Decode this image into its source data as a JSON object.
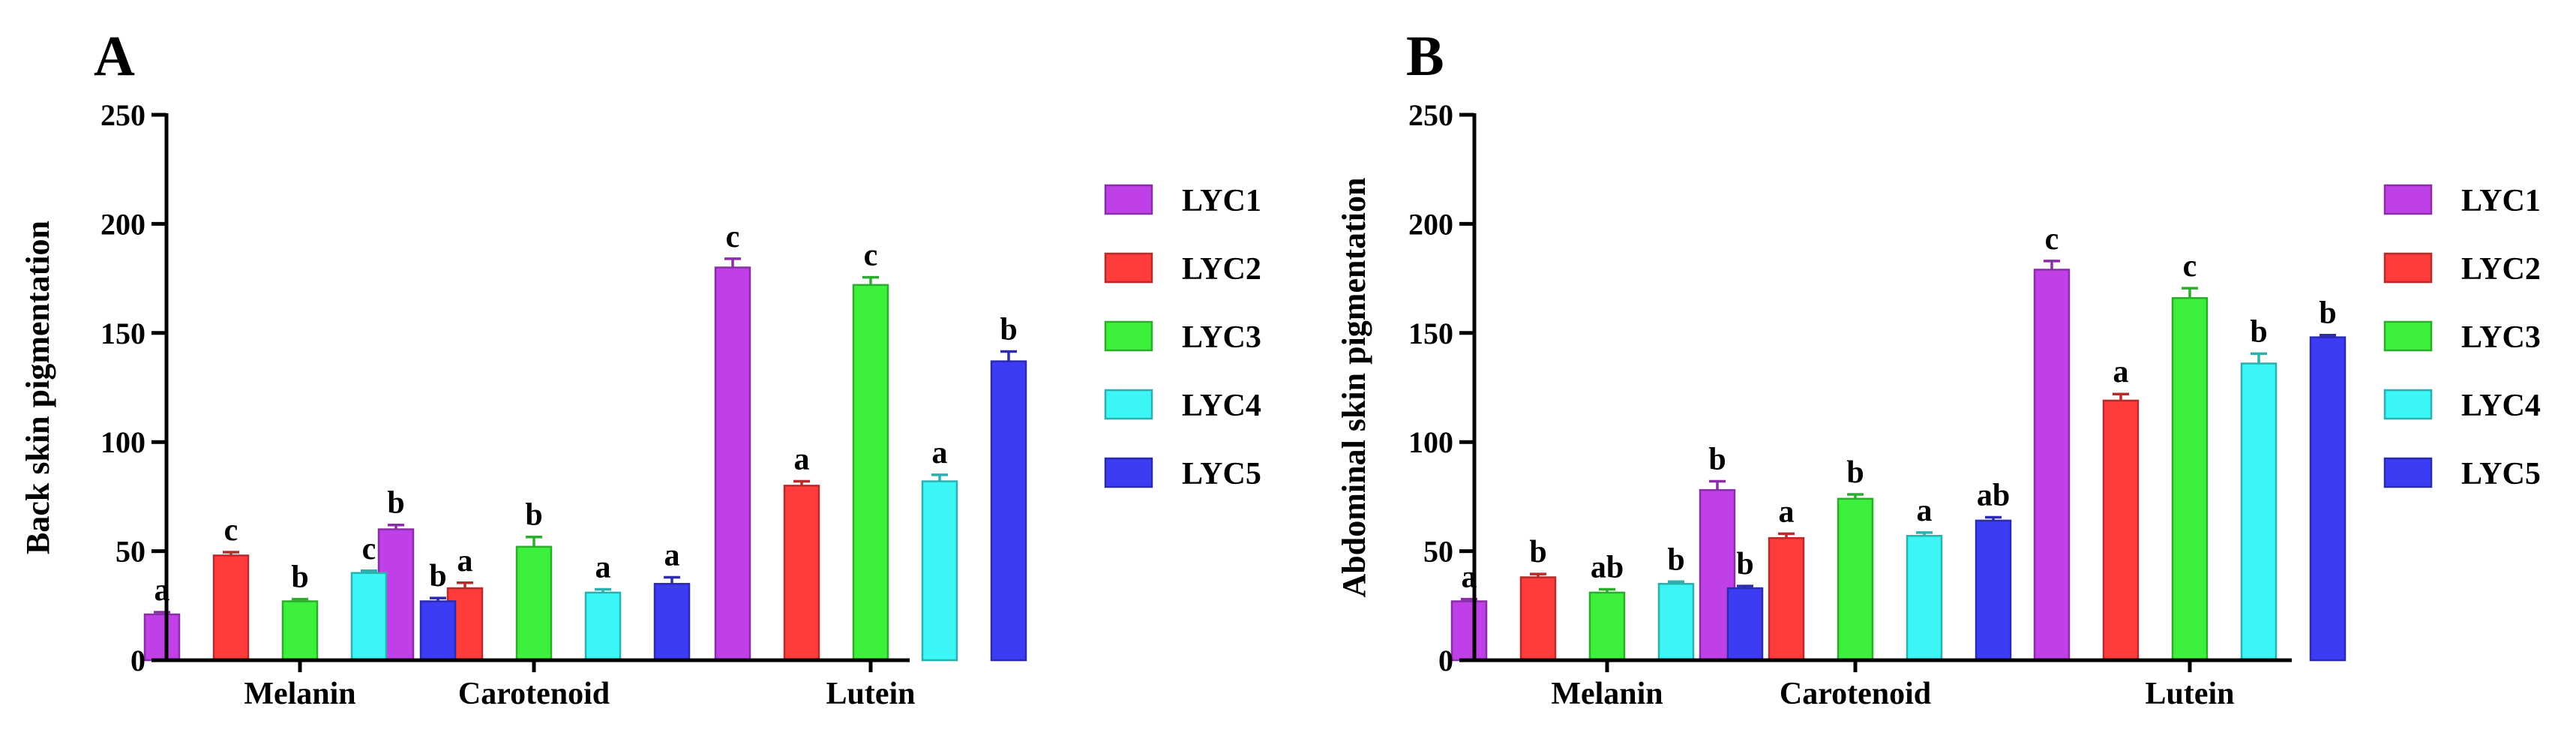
{
  "chart_data": [
    {
      "type": "bar",
      "panel_label": "A",
      "ylabel": "Back skin pigmentation",
      "xlabel": "",
      "ylim": [
        0,
        250
      ],
      "yticks": [
        "0",
        "50",
        "100",
        "150",
        "200",
        "250"
      ],
      "categories": [
        "Melanin",
        "Carotenoid",
        "Lutein"
      ],
      "legend_position": "right",
      "series": [
        {
          "name": "LYC1",
          "color": "#c040e8",
          "values": [
            21,
            60,
            180
          ],
          "errors": [
            1,
            2,
            4
          ],
          "letters": [
            "a",
            "b",
            "c"
          ]
        },
        {
          "name": "LYC2",
          "color": "#ff3c3c",
          "values": [
            48,
            33,
            80
          ],
          "errors": [
            1.5,
            2.5,
            2
          ],
          "letters": [
            "c",
            "a",
            "a"
          ]
        },
        {
          "name": "LYC3",
          "color": "#3cf03c",
          "values": [
            27,
            52,
            172
          ],
          "errors": [
            1,
            4.5,
            3.5
          ],
          "letters": [
            "b",
            "b",
            "c"
          ]
        },
        {
          "name": "LYC4",
          "color": "#3cf5f5",
          "values": [
            40,
            31,
            82
          ],
          "errors": [
            1,
            1.5,
            3
          ],
          "letters": [
            "c",
            "a",
            "a"
          ]
        },
        {
          "name": "LYC5",
          "color": "#3c3cf5",
          "values": [
            27,
            35,
            137
          ],
          "errors": [
            1.5,
            3,
            4.5
          ],
          "letters": [
            "b",
            "a",
            "b"
          ]
        }
      ]
    },
    {
      "type": "bar",
      "panel_label": "B",
      "ylabel": "Abdominal skin pigmentation",
      "xlabel": "",
      "ylim": [
        0,
        250
      ],
      "yticks": [
        "0",
        "50",
        "100",
        "150",
        "200",
        "250"
      ],
      "categories": [
        "Melanin",
        "Carotenoid",
        "Lutein"
      ],
      "legend_position": "right",
      "series": [
        {
          "name": "LYC1",
          "color": "#c040e8",
          "values": [
            27,
            78,
            179
          ],
          "errors": [
            1,
            4,
            4
          ],
          "letters": [
            "a",
            "b",
            "c"
          ]
        },
        {
          "name": "LYC2",
          "color": "#ff3c3c",
          "values": [
            38,
            56,
            119
          ],
          "errors": [
            1.5,
            2,
            3
          ],
          "letters": [
            "b",
            "a",
            "a"
          ]
        },
        {
          "name": "LYC3",
          "color": "#3cf03c",
          "values": [
            31,
            74,
            166
          ],
          "errors": [
            1.5,
            2,
            4.5
          ],
          "letters": [
            "ab",
            "b",
            "c"
          ]
        },
        {
          "name": "LYC4",
          "color": "#3cf5f5",
          "values": [
            35,
            57,
            136
          ],
          "errors": [
            1,
            1.5,
            4.5
          ],
          "letters": [
            "b",
            "a",
            "b"
          ]
        },
        {
          "name": "LYC5",
          "color": "#3c3cf5",
          "values": [
            33,
            64,
            148
          ],
          "errors": [
            1,
            1.5,
            1
          ],
          "letters": [
            "b",
            "ab",
            "b"
          ]
        }
      ]
    }
  ]
}
